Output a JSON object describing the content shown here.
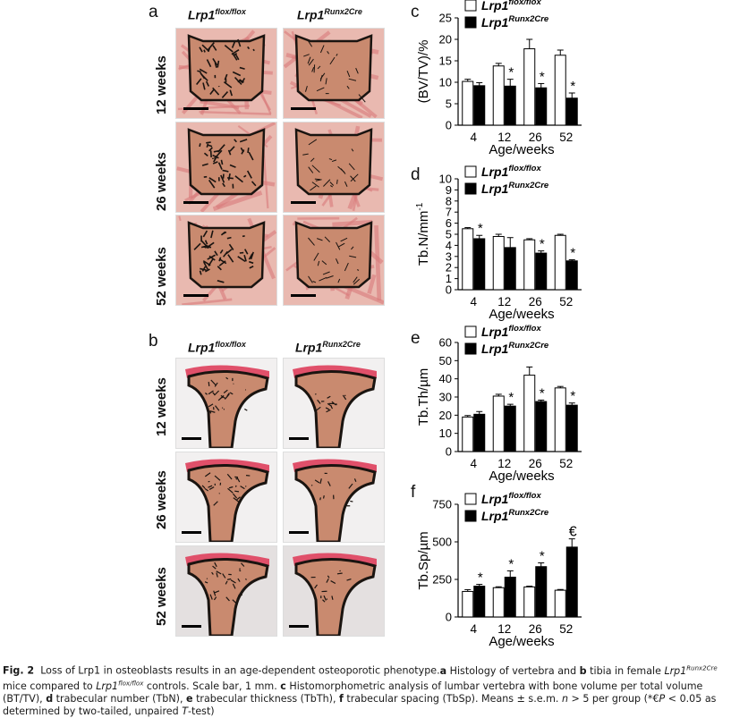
{
  "figure": {
    "panel_a": {
      "letter": "a",
      "col_titles": [
        {
          "base": "Lrp1",
          "sup": "flox/flox"
        },
        {
          "base": "Lrp1",
          "sup": "Runx2Cre"
        }
      ],
      "row_labels": [
        "12 weeks",
        "26 weeks",
        "52 weeks"
      ]
    },
    "panel_b": {
      "letter": "b",
      "col_titles": [
        {
          "base": "Lrp1",
          "sup": "flox/flox"
        },
        {
          "base": "Lrp1",
          "sup": "Runx2Cre"
        }
      ],
      "row_labels": [
        "12 weeks",
        "26 weeks",
        "52 weeks"
      ]
    },
    "legend": {
      "flox": {
        "base": "Lrp1",
        "sup": "flox/flox"
      },
      "cre": {
        "base": "Lrp1",
        "sup": "Runx2Cre"
      }
    },
    "colors": {
      "control_fill": "#ffffff",
      "mutant_fill": "#000000",
      "tissue": "#c98a6f",
      "bone": "#1a1410"
    }
  },
  "chart_data": [
    {
      "panel": "c",
      "type": "bar",
      "categories": [
        "4",
        "12",
        "26",
        "52"
      ],
      "series": [
        {
          "name": "Lrp1 flox/flox",
          "values": [
            10.2,
            13.8,
            17.8,
            16.3
          ],
          "errors": [
            0.5,
            0.6,
            2.2,
            1.2
          ]
        },
        {
          "name": "Lrp1 Runx2Cre",
          "values": [
            9.2,
            9.1,
            8.7,
            6.3
          ],
          "errors": [
            0.7,
            1.6,
            1.0,
            1.2
          ]
        }
      ],
      "markers": [
        "",
        "*",
        "*",
        "*"
      ],
      "ylabel": "(BV/TV)/%",
      "xlabel": "Age/weeks",
      "ylim": [
        0,
        25
      ],
      "yticks": [
        "0",
        "5",
        "10",
        "15",
        "20",
        "25"
      ]
    },
    {
      "panel": "d",
      "type": "bar",
      "categories": [
        "4",
        "12",
        "26",
        "52"
      ],
      "series": [
        {
          "name": "Lrp1 flox/flox",
          "values": [
            5.5,
            4.8,
            4.5,
            4.9
          ],
          "errors": [
            0.1,
            0.2,
            0.1,
            0.1
          ]
        },
        {
          "name": "Lrp1 Runx2Cre",
          "values": [
            4.6,
            3.8,
            3.3,
            2.6
          ],
          "errors": [
            0.3,
            0.9,
            0.2,
            0.1
          ]
        }
      ],
      "markers": [
        "*",
        "",
        "*",
        "*"
      ],
      "ylabel": "Tb.N/mm",
      "ylabel_sup": "-1",
      "xlabel": "Age/weeks",
      "ylim": [
        0,
        10
      ],
      "yticks": [
        "0",
        "1",
        "2",
        "3",
        "4",
        "5",
        "6",
        "7",
        "8",
        "9",
        "10"
      ]
    },
    {
      "panel": "e",
      "type": "bar",
      "categories": [
        "4",
        "12",
        "26",
        "52"
      ],
      "series": [
        {
          "name": "Lrp1 flox/flox",
          "values": [
            19,
            30.5,
            42,
            35
          ],
          "errors": [
            0.8,
            1.0,
            4.5,
            0.8
          ]
        },
        {
          "name": "Lrp1 Runx2Cre",
          "values": [
            20.5,
            25,
            27.5,
            25.5
          ],
          "errors": [
            1.5,
            1.0,
            0.8,
            1.2
          ]
        }
      ],
      "markers": [
        "",
        "*",
        "*",
        "*"
      ],
      "ylabel": "Tb.Th/µm",
      "xlabel": "Age/weeks",
      "ylim": [
        0,
        60
      ],
      "yticks": [
        "0",
        "10",
        "20",
        "30",
        "40",
        "50",
        "60"
      ]
    },
    {
      "panel": "f",
      "type": "bar",
      "categories": [
        "4",
        "12",
        "26",
        "52"
      ],
      "series": [
        {
          "name": "Lrp1 flox/flox",
          "values": [
            170,
            195,
            200,
            178
          ],
          "errors": [
            12,
            6,
            5,
            5
          ]
        },
        {
          "name": "Lrp1 Runx2Cre",
          "values": [
            205,
            265,
            335,
            465
          ],
          "errors": [
            12,
            42,
            25,
            55
          ]
        }
      ],
      "markers": [
        "*",
        "*",
        "*",
        "€"
      ],
      "ylabel": "Tb.Sp/µm",
      "xlabel": "Age/weeks",
      "ylim": [
        0,
        750
      ],
      "yticks": [
        "0",
        "250",
        "500",
        "750"
      ]
    }
  ],
  "caption": {
    "fig_label": "Fig. 2",
    "title": "Loss of Lrp1 in osteoblasts results in an age-dependent osteoporotic phenotype.",
    "parts": [
      {
        "b": "a",
        "t": " Histology of vertebra and "
      },
      {
        "b": "b",
        "t": " tibia in female "
      },
      {
        "i": "Lrp1",
        "sup": "Runx2Cre",
        "t": " mice compared to "
      },
      {
        "i": "Lrp1",
        "sup": "flox/flox",
        "t": " controls. Scale bar, 1 mm. "
      },
      {
        "b": "c",
        "t": " Histomorphometric analysis of lumbar vertebra with bone volume per total volume (BT/TV), "
      },
      {
        "b": "d",
        "t": " trabecular number (TbN), "
      },
      {
        "b": "e",
        "t": " trabecular thickness (TbTh), "
      },
      {
        "b": "f",
        "t": " trabecular spacing (TbSp). Means ± s.e.m. "
      },
      {
        "i": "n",
        "t": " > 5 per group (*€"
      },
      {
        "i": "P",
        "t": " < 0.05 as determined by two-tailed, unpaired "
      },
      {
        "i": "T",
        "t": "-test)"
      }
    ]
  }
}
